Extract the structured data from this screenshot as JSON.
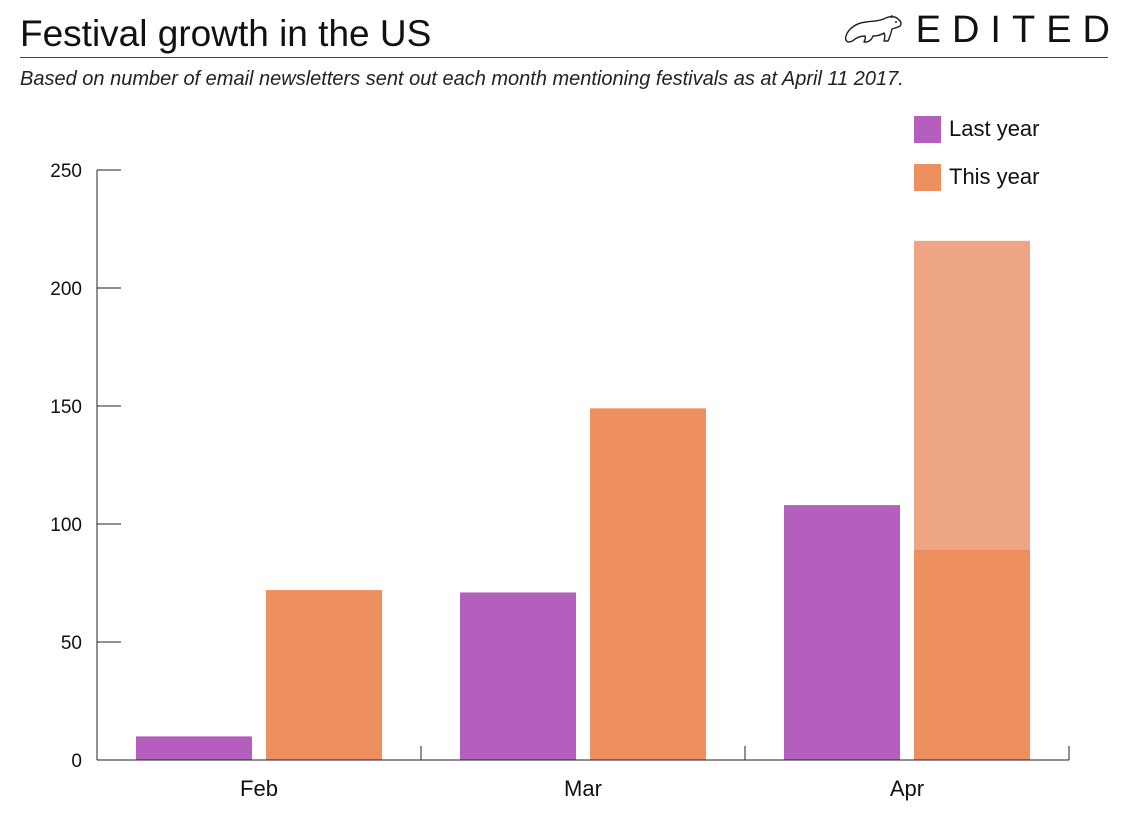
{
  "header": {
    "title": "Festival growth in the US",
    "subtitle": "Based on number of email newsletters sent out each month mentioning festivals as at April 11 2017.",
    "brand": "EDITED",
    "brand_icon": "polar-bear-logo-icon"
  },
  "chart_data": {
    "type": "bar",
    "title": "Festival growth in the US",
    "subtitle": "Based on number of email newsletters sent out each month mentioning festivals as at April 11 2017.",
    "categories": [
      "Feb",
      "Mar",
      "Apr"
    ],
    "series": [
      {
        "name": "Last year",
        "values": [
          10,
          71,
          108
        ],
        "color": "#b45fbd"
      },
      {
        "name": "This year",
        "values": [
          72,
          149,
          220
        ],
        "color": "#ee8f5f"
      }
    ],
    "overlay": {
      "category": "Apr",
      "series": "This year",
      "solid_value": 89,
      "light_color": "#eea583"
    },
    "yticks": [
      0,
      50,
      100,
      150,
      200,
      250
    ],
    "ylim": [
      0,
      250
    ],
    "xlabel": "",
    "ylabel": "",
    "grid": false,
    "legend_position": "top-right"
  }
}
